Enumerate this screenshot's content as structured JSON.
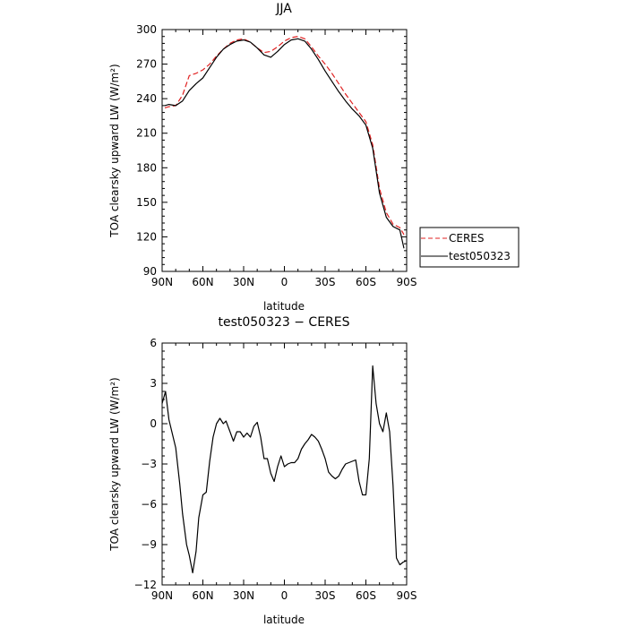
{
  "chart_data": [
    {
      "type": "line",
      "title": "JJA",
      "xlabel": "latitude",
      "ylabel": "TOA clearsky upward LW (W/m²)",
      "xlim": [
        90,
        -90
      ],
      "ylim": [
        90,
        300
      ],
      "xticks": [
        90,
        60,
        30,
        0,
        -30,
        -60,
        -90
      ],
      "xtick_labels": [
        "90N",
        "60N",
        "30N",
        "0",
        "30S",
        "60S",
        "90S"
      ],
      "yticks": [
        90,
        120,
        150,
        180,
        210,
        240,
        270,
        300
      ],
      "ytick_labels": [
        "90",
        "120",
        "150",
        "180",
        "210",
        "240",
        "270",
        "300"
      ],
      "legend_position": "right",
      "series": [
        {
          "name": "CERES",
          "color": "#e02020",
          "dash": "dashed",
          "x": [
            88,
            85,
            80,
            75,
            70,
            65,
            60,
            55,
            50,
            45,
            40,
            35,
            30,
            25,
            20,
            15,
            10,
            5,
            0,
            -5,
            -10,
            -15,
            -20,
            -25,
            -30,
            -35,
            -40,
            -45,
            -50,
            -55,
            -60,
            -65,
            -70,
            -75,
            -80,
            -85,
            -88
          ],
          "y": [
            232,
            233,
            234,
            243,
            260,
            262,
            265,
            270,
            277,
            283,
            288,
            291,
            292,
            289,
            284,
            280,
            281,
            285,
            290,
            293,
            294,
            292,
            285,
            277,
            270,
            262,
            253,
            244,
            236,
            228,
            220,
            200,
            162,
            141,
            131,
            128,
            122
          ]
        },
        {
          "name": "test050323",
          "color": "#000000",
          "dash": "solid",
          "x": [
            88,
            85,
            80,
            75,
            70,
            65,
            60,
            55,
            50,
            45,
            40,
            35,
            30,
            25,
            20,
            15,
            10,
            5,
            0,
            -5,
            -10,
            -15,
            -20,
            -25,
            -30,
            -35,
            -40,
            -45,
            -50,
            -55,
            -60,
            -65,
            -70,
            -75,
            -80,
            -85,
            -88
          ],
          "y": [
            234,
            235,
            234,
            238,
            247,
            253,
            258,
            267,
            276,
            283,
            287,
            290,
            291,
            289,
            284,
            278,
            276,
            281,
            287,
            291,
            292,
            290,
            283,
            274,
            264,
            255,
            246,
            238,
            231,
            225,
            217,
            197,
            158,
            137,
            129,
            126,
            110
          ]
        }
      ]
    },
    {
      "type": "line",
      "title": "test050323 − CERES",
      "xlabel": "latitude",
      "ylabel": "TOA clearsky upward LW (W/m²)",
      "xlim": [
        90,
        -90
      ],
      "ylim": [
        -12,
        6
      ],
      "xticks": [
        90,
        60,
        30,
        0,
        -30,
        -60,
        -90
      ],
      "xtick_labels": [
        "90N",
        "60N",
        "30N",
        "0",
        "30S",
        "60S",
        "90S"
      ],
      "yticks": [
        -12,
        -9,
        -6,
        -3,
        0,
        3,
        6
      ],
      "ytick_labels": [
        "−12",
        "−9",
        "−6",
        "−3",
        "0",
        "3",
        "6"
      ],
      "series": [
        {
          "color": "#000000",
          "dash": "solid",
          "x": [
            90,
            87.5,
            85,
            80,
            77,
            75,
            72,
            70,
            67.5,
            65,
            63,
            60,
            57.5,
            55,
            52.5,
            50,
            47.5,
            45,
            43,
            40,
            37.5,
            35,
            32.5,
            30,
            27.5,
            25,
            22.5,
            20,
            17.5,
            15,
            12.5,
            10,
            7.5,
            5,
            2.5,
            0,
            -2.5,
            -5,
            -7.5,
            -10,
            -12.5,
            -15,
            -17.5,
            -20,
            -22.5,
            -25,
            -27.5,
            -30,
            -32.5,
            -35,
            -37.5,
            -40,
            -42.5,
            -45,
            -47.5,
            -50,
            -52.5,
            -55,
            -57.5,
            -60,
            -62.5,
            -65,
            -67.5,
            -70,
            -72.5,
            -75,
            -77.5,
            -80,
            -82.5,
            -85,
            -87.5,
            -90
          ],
          "y": [
            1.5,
            2.4,
            0.3,
            -1.8,
            -4.5,
            -6.7,
            -9.0,
            -9.8,
            -11.1,
            -9.5,
            -7.0,
            -5.3,
            -5.1,
            -2.8,
            -1.0,
            0.0,
            0.4,
            0.0,
            0.2,
            -0.6,
            -1.3,
            -0.6,
            -0.6,
            -1.0,
            -0.7,
            -1.0,
            -0.2,
            0.1,
            -1.0,
            -2.6,
            -2.6,
            -3.7,
            -4.3,
            -3.2,
            -2.4,
            -3.2,
            -3.0,
            -2.9,
            -2.9,
            -2.6,
            -1.9,
            -1.5,
            -1.2,
            -0.8,
            -1.0,
            -1.3,
            -1.9,
            -2.6,
            -3.6,
            -3.9,
            -4.1,
            -3.9,
            -3.4,
            -3.0,
            -2.9,
            -2.8,
            -2.7,
            -4.3,
            -5.3,
            -5.3,
            -2.6,
            4.3,
            1.5,
            0.0,
            -0.6,
            0.8,
            -0.6,
            -4.6,
            -10.0,
            -10.5,
            -10.3,
            -10.2
          ]
        }
      ]
    }
  ]
}
